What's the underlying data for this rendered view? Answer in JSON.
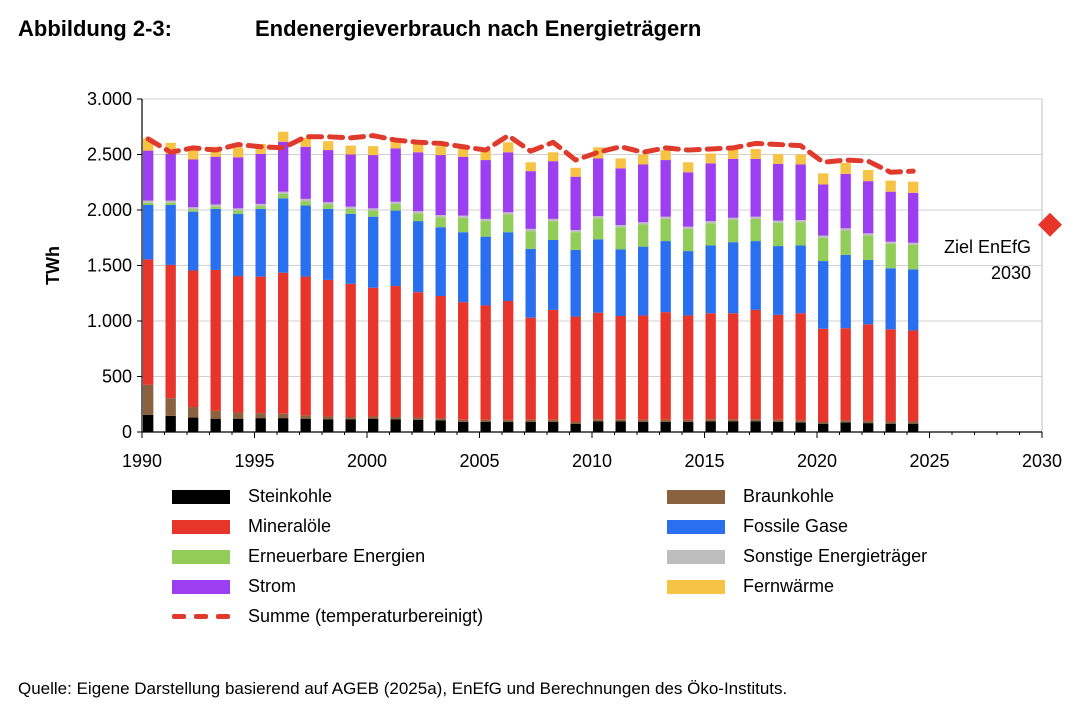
{
  "figure": {
    "label": "Abbildung 2-3:",
    "title": "Endenergieverbrauch nach Energieträgern",
    "source": "Quelle: Eigene Darstellung basierend auf AGEB (2025a), EnEfG und Berechnungen des Öko-Instituts."
  },
  "chart_data": {
    "type": "bar",
    "stacked": true,
    "title": "Endenergieverbrauch nach Energieträgern",
    "xlabel": "",
    "ylabel": "TWh",
    "xlim": [
      1990,
      2030
    ],
    "ylim": [
      0,
      3000
    ],
    "x_ticks": [
      1990,
      1995,
      2000,
      2005,
      2010,
      2015,
      2020,
      2025,
      2030
    ],
    "y_ticks": [
      0,
      500,
      1000,
      1500,
      2000,
      2500,
      3000
    ],
    "y_tick_labels": [
      "0",
      "500",
      "1.000",
      "1.500",
      "2.000",
      "2.500",
      "3.000"
    ],
    "grid": "horizontal",
    "legend_position": "bottom",
    "categories": [
      1990,
      1991,
      1992,
      1993,
      1994,
      1995,
      1996,
      1997,
      1998,
      1999,
      2000,
      2001,
      2002,
      2003,
      2004,
      2005,
      2006,
      2007,
      2008,
      2009,
      2010,
      2011,
      2012,
      2013,
      2014,
      2015,
      2016,
      2017,
      2018,
      2019,
      2020,
      2021,
      2022,
      2023,
      2024
    ],
    "series": [
      {
        "name": "Steinkohle",
        "color": "#000000",
        "values": [
          155,
          145,
          130,
          120,
          120,
          125,
          125,
          120,
          115,
          115,
          120,
          115,
          110,
          105,
          90,
          90,
          90,
          90,
          90,
          75,
          95,
          95,
          90,
          90,
          90,
          95,
          95,
          95,
          90,
          85,
          75,
          85,
          80,
          75,
          75
        ]
      },
      {
        "name": "Braunkohle",
        "color": "#8b6240",
        "values": [
          270,
          160,
          95,
          70,
          55,
          45,
          40,
          30,
          25,
          20,
          20,
          20,
          20,
          20,
          20,
          20,
          20,
          20,
          20,
          15,
          20,
          20,
          20,
          20,
          20,
          20,
          20,
          20,
          20,
          20,
          15,
          20,
          20,
          20,
          20
        ]
      },
      {
        "name": "Mineralöle",
        "color": "#e8352b",
        "values": [
          1130,
          1200,
          1230,
          1270,
          1230,
          1230,
          1270,
          1250,
          1230,
          1200,
          1160,
          1180,
          1130,
          1100,
          1060,
          1030,
          1070,
          920,
          990,
          950,
          960,
          930,
          940,
          970,
          940,
          955,
          955,
          985,
          945,
          965,
          840,
          830,
          870,
          830,
          820
        ]
      },
      {
        "name": "Fossile Gase",
        "color": "#2a6ff0",
        "values": [
          490,
          540,
          530,
          550,
          560,
          610,
          670,
          640,
          640,
          630,
          640,
          680,
          640,
          620,
          630,
          620,
          620,
          620,
          630,
          600,
          660,
          600,
          620,
          640,
          580,
          610,
          640,
          620,
          620,
          610,
          610,
          660,
          580,
          550,
          550
        ]
      },
      {
        "name": "Erneuerbare Energien",
        "color": "#92cd5a",
        "values": [
          20,
          20,
          20,
          20,
          30,
          25,
          40,
          40,
          40,
          45,
          55,
          60,
          70,
          90,
          130,
          140,
          160,
          160,
          170,
          160,
          190,
          200,
          200,
          200,
          200,
          200,
          200,
          200,
          210,
          210,
          210,
          220,
          220,
          220,
          220
        ]
      },
      {
        "name": "Sonstige Energieträger",
        "color": "#bdbdbd",
        "values": [
          20,
          20,
          20,
          20,
          20,
          20,
          20,
          20,
          20,
          20,
          20,
          20,
          20,
          20,
          20,
          20,
          20,
          20,
          20,
          20,
          20,
          20,
          20,
          20,
          20,
          20,
          20,
          20,
          20,
          20,
          20,
          20,
          20,
          20,
          20
        ]
      },
      {
        "name": "Strom",
        "color": "#9b3ff0",
        "values": [
          450,
          420,
          430,
          430,
          460,
          450,
          450,
          470,
          470,
          470,
          480,
          480,
          530,
          540,
          530,
          530,
          540,
          520,
          520,
          480,
          520,
          510,
          520,
          510,
          490,
          520,
          530,
          520,
          510,
          500,
          460,
          490,
          470,
          450,
          450
        ]
      },
      {
        "name": "Fernwärme",
        "color": "#f6c344",
        "values": [
          110,
          100,
          90,
          90,
          90,
          90,
          90,
          80,
          80,
          80,
          80,
          80,
          80,
          80,
          80,
          90,
          90,
          80,
          80,
          80,
          100,
          90,
          90,
          90,
          90,
          90,
          90,
          90,
          90,
          90,
          100,
          100,
          100,
          100,
          100
        ]
      }
    ],
    "total_line": {
      "name": "Summe (temperaturbereinigt)",
      "color": "#e03a2c",
      "style": "dashed",
      "values": [
        2640,
        2520,
        2560,
        2540,
        2590,
        2570,
        2560,
        2660,
        2660,
        2650,
        2670,
        2630,
        2610,
        2600,
        2570,
        2540,
        2670,
        2530,
        2610,
        2450,
        2520,
        2570,
        2520,
        2560,
        2540,
        2550,
        2560,
        2600,
        2590,
        2580,
        2430,
        2450,
        2440,
        2340,
        2350
      ]
    },
    "target": {
      "label_line1": "Ziel EnEfG",
      "label_line2": "2030",
      "year": 2030,
      "value": 1867,
      "color": "#e8352b"
    }
  },
  "legend": {
    "items": [
      {
        "label": "Steinkohle",
        "color": "#000000"
      },
      {
        "label": "Braunkohle",
        "color": "#8b6240"
      },
      {
        "label": "Mineralöle",
        "color": "#e8352b"
      },
      {
        "label": "Fossile Gase",
        "color": "#2a6ff0"
      },
      {
        "label": "Erneuerbare Energien",
        "color": "#92cd5a"
      },
      {
        "label": "Sonstige Energieträger",
        "color": "#bdbdbd"
      },
      {
        "label": "Strom",
        "color": "#9b3ff0"
      },
      {
        "label": "Fernwärme",
        "color": "#f6c344"
      }
    ],
    "total_label": "Summe (temperaturbereinigt)"
  }
}
